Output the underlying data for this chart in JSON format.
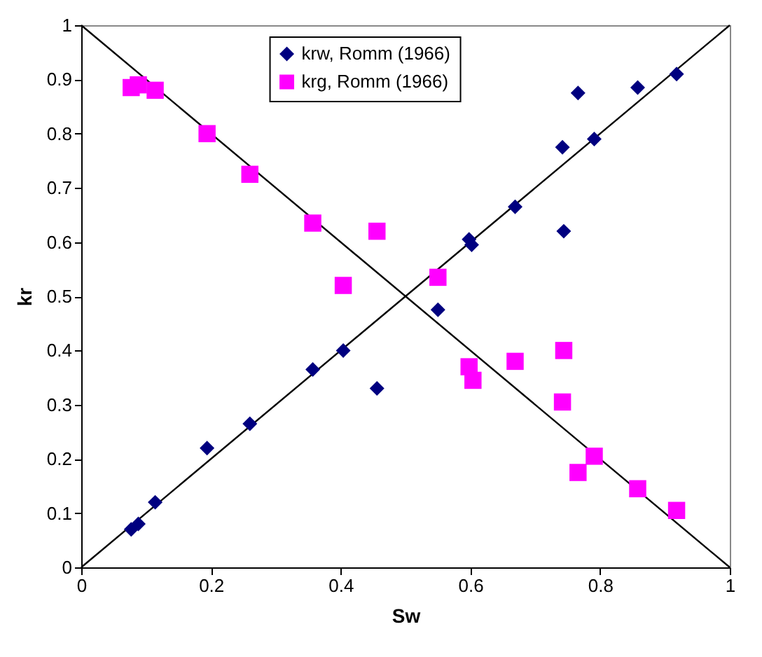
{
  "chart_data": {
    "type": "scatter",
    "xlabel": "Sw",
    "ylabel": "kr",
    "xlim": [
      0,
      1
    ],
    "ylim": [
      0,
      1
    ],
    "xticks": [
      0,
      0.2,
      0.4,
      0.6,
      0.8,
      1
    ],
    "yticks": [
      0,
      0.1,
      0.2,
      0.3,
      0.4,
      0.5,
      0.6,
      0.7,
      0.8,
      0.9,
      1
    ],
    "grid": false,
    "legend": "top",
    "series": [
      {
        "name": "krw, Romm (1966)",
        "color": "#000080",
        "marker": "diamond",
        "x": [
          0.077,
          0.088,
          0.114,
          0.194,
          0.26,
          0.357,
          0.404,
          0.456,
          0.55,
          0.598,
          0.602,
          0.669,
          0.742,
          0.744,
          0.766,
          0.791,
          0.858,
          0.918
        ],
        "values": [
          0.07,
          0.08,
          0.12,
          0.22,
          0.265,
          0.365,
          0.4,
          0.33,
          0.475,
          0.605,
          0.595,
          0.665,
          0.775,
          0.62,
          0.875,
          0.79,
          0.885,
          0.91
        ]
      },
      {
        "name": "krg, Romm (1966)",
        "color": "#ff00ff",
        "marker": "square",
        "x": [
          0.077,
          0.088,
          0.114,
          0.194,
          0.26,
          0.357,
          0.456,
          0.404,
          0.55,
          0.598,
          0.604,
          0.669,
          0.744,
          0.742,
          0.766,
          0.791,
          0.858,
          0.918
        ],
        "values": [
          0.885,
          0.89,
          0.88,
          0.8,
          0.725,
          0.635,
          0.62,
          0.52,
          0.535,
          0.37,
          0.345,
          0.38,
          0.4,
          0.305,
          0.175,
          0.205,
          0.145,
          0.105
        ]
      },
      {
        "type": "line",
        "color": "#000000",
        "x": [
          0,
          1
        ],
        "values": [
          0,
          1
        ]
      },
      {
        "type": "line",
        "color": "#000000",
        "x": [
          0,
          1
        ],
        "values": [
          1,
          0
        ]
      }
    ]
  }
}
